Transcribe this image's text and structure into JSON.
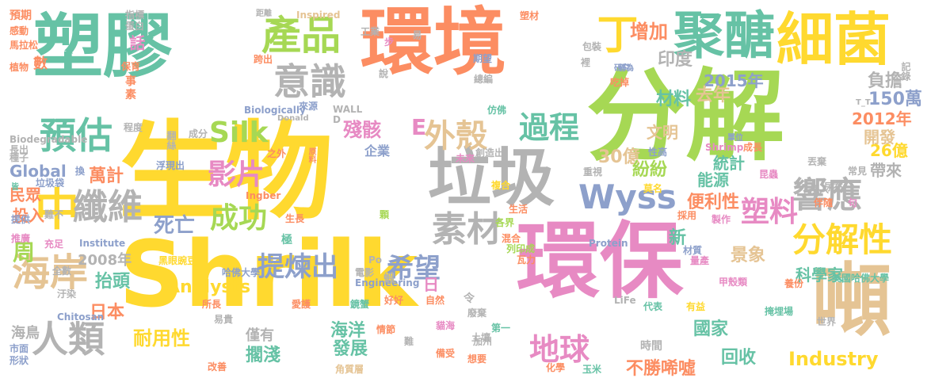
{
  "palette": {
    "teal": "#66c2a5",
    "orange": "#fc8d62",
    "blue": "#8da0cb",
    "pink": "#e78ac3",
    "green": "#a6d854",
    "yellow": "#ffd92f",
    "tan": "#e5c494",
    "gray": "#b3b3b3"
  },
  "words": [
    {
      "text": "生物",
      "color": "#ffd92f"
    },
    {
      "text": "Shrilk",
      "color": "#ffd92f"
    },
    {
      "text": "分解",
      "color": "#a6d854"
    },
    {
      "text": "環保",
      "color": "#e78ac3"
    },
    {
      "text": "環境",
      "color": "#fc8d62"
    },
    {
      "text": "塑膠",
      "color": "#66c2a5"
    },
    {
      "text": "垃圾",
      "color": "#b3b3b3"
    },
    {
      "text": "細菌",
      "color": "#ffd92f"
    },
    {
      "text": "聚醣",
      "color": "#66c2a5"
    },
    {
      "text": "噸",
      "color": "#e5c494"
    },
    {
      "text": "中",
      "color": "#ffd92f"
    },
    {
      "text": "產品",
      "color": "#a6d854"
    },
    {
      "text": "意識",
      "color": "#b3b3b3"
    },
    {
      "text": "預估",
      "color": "#66c2a5"
    },
    {
      "text": "纖維",
      "color": "#b3b3b3"
    },
    {
      "text": "素材",
      "color": "#b3b3b3"
    },
    {
      "text": "Wyss",
      "color": "#8da0cb"
    },
    {
      "text": "響應",
      "color": "#b3b3b3"
    },
    {
      "text": "分解性",
      "color": "#ffd92f"
    },
    {
      "text": "丁",
      "color": "#ffd92f"
    },
    {
      "text": "外殼",
      "color": "#e5c494"
    },
    {
      "text": "過程",
      "color": "#66c2a5"
    },
    {
      "text": "E",
      "color": "#e78ac3"
    },
    {
      "text": "Silk",
      "color": "#a6d854"
    },
    {
      "text": "影片",
      "color": "#e78ac3"
    },
    {
      "text": "成功",
      "color": "#a6d854"
    },
    {
      "text": "提煉出",
      "color": "#8da0cb"
    },
    {
      "text": "希望",
      "color": "#8da0cb"
    },
    {
      "text": "海岸",
      "color": "#e5c494"
    },
    {
      "text": "人類",
      "color": "#b3b3b3"
    },
    {
      "text": "塑料",
      "color": "#e78ac3"
    },
    {
      "text": "地球",
      "color": "#e78ac3"
    },
    {
      "text": "周",
      "color": "#a6d854"
    },
    {
      "text": "Global",
      "color": "#8da0cb"
    },
    {
      "text": "死亡",
      "color": "#8da0cb"
    },
    {
      "text": "Industry",
      "color": "#ffd92f"
    },
    {
      "text": "增加",
      "color": "#fc8d62"
    },
    {
      "text": "印度",
      "color": "#b3b3b3"
    },
    {
      "text": "2015年",
      "color": "#8da0cb"
    },
    {
      "text": "材料",
      "color": "#66c2a5"
    },
    {
      "text": "去年",
      "color": "#e5c494"
    },
    {
      "text": "文明",
      "color": "#e5c494"
    },
    {
      "text": "負擔",
      "color": "#b3b3b3"
    },
    {
      "text": "150萬",
      "color": "#8da0cb"
    },
    {
      "text": "2012年",
      "color": "#fc8d62"
    },
    {
      "text": "開發",
      "color": "#e5c494"
    },
    {
      "text": "26億",
      "color": "#ffd92f"
    },
    {
      "text": "帶來",
      "color": "#b3b3b3"
    },
    {
      "text": "30億",
      "color": "#e5c494"
    },
    {
      "text": "紛紛",
      "color": "#a6d854"
    },
    {
      "text": "統計",
      "color": "#66c2a5"
    },
    {
      "text": "能源",
      "color": "#66c2a5"
    },
    {
      "text": "便利性",
      "color": "#fc8d62"
    },
    {
      "text": "景象",
      "color": "#e5c494"
    },
    {
      "text": "新",
      "color": "#66c2a5"
    },
    {
      "text": "科學家",
      "color": "#66c2a5"
    },
    {
      "text": "國家",
      "color": "#66c2a5"
    },
    {
      "text": "不勝唏噓",
      "color": "#fc8d62"
    },
    {
      "text": "回收",
      "color": "#66c2a5"
    },
    {
      "text": "時間",
      "color": "#b3b3b3"
    },
    {
      "text": "發展",
      "color": "#66c2a5"
    },
    {
      "text": "擱淺",
      "color": "#66c2a5"
    },
    {
      "text": "海洋",
      "color": "#66c2a5"
    },
    {
      "text": "僅有",
      "color": "#b3b3b3"
    },
    {
      "text": "耐用性",
      "color": "#ffd92f"
    },
    {
      "text": "日本",
      "color": "#fc8d62"
    },
    {
      "text": "抬頭",
      "color": "#66c2a5"
    },
    {
      "text": "Analysts",
      "color": "#ffd92f"
    },
    {
      "text": "2008年",
      "color": "#b3b3b3"
    },
    {
      "text": "海鳥",
      "color": "#b3b3b3"
    },
    {
      "text": "萬計",
      "color": "#fc8d62"
    },
    {
      "text": "殘骸",
      "color": "#e78ac3"
    },
    {
      "text": "企業",
      "color": "#8da0cb"
    },
    {
      "text": "民眾",
      "color": "#fc8d62"
    },
    {
      "text": "投入",
      "color": "#fc8d62"
    },
    {
      "text": "數",
      "color": "#fc8d62"
    },
    {
      "text": "預期",
      "color": "#fc8d62"
    },
    {
      "text": "感動",
      "color": "#fc8d62"
    },
    {
      "text": "馬拉松",
      "color": "#fc8d62"
    },
    {
      "text": "植物",
      "color": "#fc8d62"
    },
    {
      "text": "指標",
      "color": "#b3b3b3"
    },
    {
      "text": "蛋白",
      "color": "#b3b3b3"
    },
    {
      "text": "話",
      "color": "#e78ac3"
    },
    {
      "text": "保育",
      "color": "#fc8d62"
    },
    {
      "text": "事",
      "color": "#fc8d62"
    },
    {
      "text": "素",
      "color": "#fc8d62"
    },
    {
      "text": "距離",
      "color": "#b3b3b3"
    },
    {
      "text": "Inspired",
      "color": "#e5c494"
    },
    {
      "text": "工業",
      "color": "#b3b3b3"
    },
    {
      "text": "易",
      "color": "#b3b3b3"
    },
    {
      "text": "期望",
      "color": "#8da0cb"
    },
    {
      "text": "總編",
      "color": "#b3b3b3"
    },
    {
      "text": "塑材",
      "color": "#fc8d62"
    },
    {
      "text": "包裝",
      "color": "#b3b3b3"
    },
    {
      "text": "裡",
      "color": "#b3b3b3"
    },
    {
      "text": "研究",
      "color": "#8da0cb"
    },
    {
      "text": "稱為",
      "color": "#8da0cb"
    },
    {
      "text": "吃掉",
      "color": "#fc8d62"
    },
    {
      "text": "記錄",
      "color": "#b3b3b3"
    },
    {
      "text": "T_T",
      "color": "#b3b3b3"
    },
    {
      "text": "Biodegradable",
      "color": "#b3b3b3"
    },
    {
      "text": "Biologically",
      "color": "#8da0cb"
    },
    {
      "text": "來源",
      "color": "#8da0cb"
    },
    {
      "text": "WALL",
      "color": "#b3b3b3"
    },
    {
      "text": "D",
      "color": "#b3b3b3"
    },
    {
      "text": "Donald",
      "color": "#b3b3b3"
    },
    {
      "text": "翻絲",
      "color": "#b3b3b3"
    },
    {
      "text": "成分",
      "color": "#b3b3b3"
    },
    {
      "text": "程度",
      "color": "#b3b3b3"
    },
    {
      "text": "長出",
      "color": "#b3b3b3"
    },
    {
      "text": "種子",
      "color": "#b3b3b3"
    },
    {
      "text": "浮現出",
      "color": "#8da0cb"
    },
    {
      "text": "之外",
      "color": "#fc8d62"
    },
    {
      "text": "原料",
      "color": "#fc8d62"
    },
    {
      "text": "創造出",
      "color": "#b3b3b3"
    },
    {
      "text": "未來",
      "color": "#e78ac3"
    },
    {
      "text": "仿佛",
      "color": "#66c2a5"
    },
    {
      "text": "單位",
      "color": "#8da0cb"
    },
    {
      "text": "成長",
      "color": "#fc8d62"
    },
    {
      "text": "Shrimp",
      "color": "#e78ac3"
    },
    {
      "text": "性高",
      "color": "#8da0cb"
    },
    {
      "text": "重視",
      "color": "#b3b3b3"
    },
    {
      "text": "昆蟲",
      "color": "#e78ac3"
    },
    {
      "text": "常見",
      "color": "#b3b3b3"
    },
    {
      "text": "丟棄",
      "color": "#b3b3b3"
    },
    {
      "text": "尿布",
      "color": "#b3b3b3"
    },
    {
      "text": "皆",
      "color": "#66c2a5"
    },
    {
      "text": "垃圾袋",
      "color": "#8da0cb"
    },
    {
      "text": "換",
      "color": "#8da0cb"
    },
    {
      "text": "Ingber",
      "color": "#fc8d62"
    },
    {
      "text": "複合",
      "color": "#ffd92f"
    },
    {
      "text": "莫名",
      "color": "#ffd92f"
    },
    {
      "text": "埋入",
      "color": "#b3b3b3"
    },
    {
      "text": "伴隨",
      "color": "#fc8d62"
    },
    {
      "text": "句",
      "color": "#e78ac3"
    },
    {
      "text": "提供",
      "color": "#8da0cb"
    },
    {
      "text": "難不",
      "color": "#b3b3b3"
    },
    {
      "text": "生長",
      "color": "#fc8d62"
    },
    {
      "text": "生活",
      "color": "#fc8d62"
    },
    {
      "text": "採用",
      "color": "#fc8d62"
    },
    {
      "text": "製作",
      "color": "#e78ac3"
    },
    {
      "text": "推廣",
      "color": "#e78ac3"
    },
    {
      "text": "充足",
      "color": "#e78ac3"
    },
    {
      "text": "Institute",
      "color": "#8da0cb"
    },
    {
      "text": "極",
      "color": "#66c2a5"
    },
    {
      "text": "顆",
      "color": "#a6d854"
    },
    {
      "text": "各界",
      "color": "#a6d854"
    },
    {
      "text": "混合",
      "color": "#fc8d62"
    },
    {
      "text": "列印成",
      "color": "#a6d854"
    },
    {
      "text": "瓦力",
      "color": "#fc8d62"
    },
    {
      "text": "Protein",
      "color": "#8da0cb"
    },
    {
      "text": "材質",
      "color": "#8da0cb"
    },
    {
      "text": "量產",
      "color": "#e78ac3"
    },
    {
      "text": "美國哈佛大學",
      "color": "#66c2a5"
    },
    {
      "text": "全數",
      "color": "#b3b3b3"
    },
    {
      "text": "黑眼豌豆",
      "color": "#ffd92f"
    },
    {
      "text": "Po",
      "color": "#b3b3b3"
    },
    {
      "text": "哈佛大學",
      "color": "#8da0cb"
    },
    {
      "text": "電影",
      "color": "#b3b3b3"
    },
    {
      "text": "Engineering",
      "color": "#8da0cb"
    },
    {
      "text": "蝦",
      "color": "#b3b3b3"
    },
    {
      "text": "日",
      "color": "#e78ac3"
    },
    {
      "text": "甲殼類",
      "color": "#e78ac3"
    },
    {
      "text": "養份",
      "color": "#fc8d62"
    },
    {
      "text": "汙染",
      "color": "#b3b3b3"
    },
    {
      "text": "令",
      "color": "#b3b3b3"
    },
    {
      "text": "廢棄",
      "color": "#b3b3b3"
    },
    {
      "text": "LiFe",
      "color": "#b3b3b3"
    },
    {
      "text": "所長",
      "color": "#fc8d62"
    },
    {
      "text": "愛護",
      "color": "#fc8d62"
    },
    {
      "text": "好好",
      "color": "#fc8d62"
    },
    {
      "text": "自然",
      "color": "#fc8d62"
    },
    {
      "text": "鏡蟹",
      "color": "#66c2a5"
    },
    {
      "text": "代表",
      "color": "#66c2a5"
    },
    {
      "text": "有益",
      "color": "#ffd92f"
    },
    {
      "text": "掩埋場",
      "color": "#66c2a5"
    },
    {
      "text": "世界",
      "color": "#b3b3b3"
    },
    {
      "text": "Chitosan",
      "color": "#8da0cb"
    },
    {
      "text": "易貴",
      "color": "#b3b3b3"
    },
    {
      "text": "土壤",
      "color": "#b3b3b3"
    },
    {
      "text": "第一",
      "color": "#66c2a5"
    },
    {
      "text": "加州",
      "color": "#b3b3b3"
    },
    {
      "text": "情節",
      "color": "#fc8d62"
    },
    {
      "text": "貓海",
      "color": "#e78ac3"
    },
    {
      "text": "市面",
      "color": "#8da0cb"
    },
    {
      "text": "形狀",
      "color": "#8da0cb"
    },
    {
      "text": "難",
      "color": "#b3b3b3"
    },
    {
      "text": "備受",
      "color": "#fc8d62"
    },
    {
      "text": "想要",
      "color": "#fc8d62"
    },
    {
      "text": "化學",
      "color": "#fc8d62"
    },
    {
      "text": "玉米",
      "color": "#66c2a5"
    },
    {
      "text": "改善",
      "color": "#fc8d62"
    },
    {
      "text": "角質層",
      "color": "#e5c494"
    },
    {
      "text": "步",
      "color": "#e78ac3"
    },
    {
      "text": "說",
      "color": "#b3b3b3"
    },
    {
      "text": "跨出",
      "color": "#fc8d62"
    }
  ]
}
